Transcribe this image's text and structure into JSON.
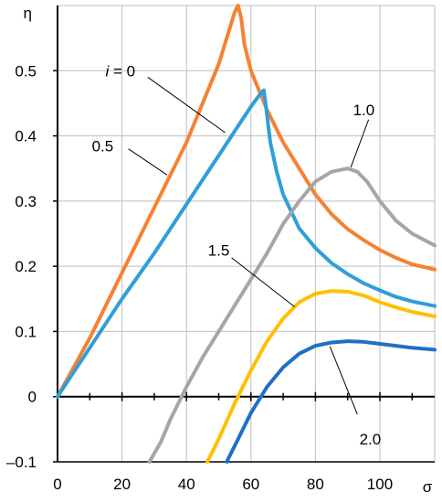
{
  "chart_data": {
    "type": "line",
    "title": "",
    "xlabel": "σ",
    "ylabel": "η",
    "xlim": [
      0,
      117
    ],
    "ylim": [
      -0.1,
      0.6
    ],
    "xticks": [
      0,
      20,
      40,
      60,
      80,
      100
    ],
    "yticks": [
      -0.1,
      0,
      0.1,
      0.2,
      0.3,
      0.4,
      0.5
    ],
    "xtick_labels": [
      "0",
      "20",
      "40",
      "60",
      "80",
      "100"
    ],
    "ytick_labels": [
      "–0.1",
      "0",
      "0.1",
      "0.2",
      "0.3",
      "0.4",
      "0.5"
    ],
    "grid": true,
    "series": [
      {
        "name": "i = 0",
        "color": "#f58233",
        "points": [
          [
            0,
            0
          ],
          [
            10,
            0.09
          ],
          [
            20,
            0.19
          ],
          [
            30,
            0.29
          ],
          [
            40,
            0.39
          ],
          [
            50,
            0.51
          ],
          [
            55,
            0.59
          ],
          [
            56,
            0.6
          ],
          [
            57,
            0.58
          ],
          [
            58,
            0.54
          ],
          [
            60,
            0.5
          ],
          [
            65,
            0.44
          ],
          [
            70,
            0.39
          ],
          [
            75,
            0.35
          ],
          [
            80,
            0.31
          ],
          [
            85,
            0.28
          ],
          [
            90,
            0.257
          ],
          [
            95,
            0.24
          ],
          [
            100,
            0.225
          ],
          [
            105,
            0.213
          ],
          [
            110,
            0.203
          ],
          [
            117,
            0.195
          ]
        ]
      },
      {
        "name": "0.5",
        "color": "#2f9fd8",
        "points": [
          [
            0,
            0
          ],
          [
            10,
            0.075
          ],
          [
            20,
            0.15
          ],
          [
            30,
            0.22
          ],
          [
            40,
            0.295
          ],
          [
            50,
            0.37
          ],
          [
            60,
            0.445
          ],
          [
            63,
            0.465
          ],
          [
            64,
            0.47
          ],
          [
            64.8,
            0.44
          ],
          [
            66,
            0.39
          ],
          [
            68,
            0.345
          ],
          [
            70,
            0.31
          ],
          [
            75,
            0.258
          ],
          [
            80,
            0.228
          ],
          [
            85,
            0.205
          ],
          [
            90,
            0.188
          ],
          [
            95,
            0.174
          ],
          [
            100,
            0.163
          ],
          [
            105,
            0.153
          ],
          [
            110,
            0.146
          ],
          [
            117,
            0.139
          ]
        ]
      },
      {
        "name": "1.0",
        "color": "#a6a6a6",
        "points": [
          [
            28.5,
            -0.1
          ],
          [
            32,
            -0.07
          ],
          [
            35,
            -0.035
          ],
          [
            40,
            0.015
          ],
          [
            45,
            0.06
          ],
          [
            50,
            0.1
          ],
          [
            55,
            0.14
          ],
          [
            60,
            0.18
          ],
          [
            65,
            0.22
          ],
          [
            70,
            0.265
          ],
          [
            75,
            0.3
          ],
          [
            80,
            0.33
          ],
          [
            85,
            0.345
          ],
          [
            90,
            0.35
          ],
          [
            93,
            0.345
          ],
          [
            96,
            0.33
          ],
          [
            100,
            0.3
          ],
          [
            105,
            0.27
          ],
          [
            110,
            0.25
          ],
          [
            117,
            0.232
          ]
        ]
      },
      {
        "name": "1.5",
        "color": "#ffc000",
        "points": [
          [
            46.5,
            -0.1
          ],
          [
            50,
            -0.065
          ],
          [
            55,
            -0.01
          ],
          [
            60,
            0.04
          ],
          [
            65,
            0.085
          ],
          [
            70,
            0.12
          ],
          [
            75,
            0.145
          ],
          [
            80,
            0.158
          ],
          [
            85,
            0.162
          ],
          [
            90,
            0.161
          ],
          [
            95,
            0.155
          ],
          [
            100,
            0.145
          ],
          [
            105,
            0.137
          ],
          [
            110,
            0.13
          ],
          [
            117,
            0.123
          ]
        ]
      },
      {
        "name": "2.0",
        "color": "#1f6fc5",
        "points": [
          [
            52.5,
            -0.1
          ],
          [
            56,
            -0.065
          ],
          [
            60,
            -0.025
          ],
          [
            65,
            0.015
          ],
          [
            70,
            0.045
          ],
          [
            75,
            0.066
          ],
          [
            80,
            0.078
          ],
          [
            85,
            0.083
          ],
          [
            90,
            0.085
          ],
          [
            95,
            0.084
          ],
          [
            100,
            0.081
          ],
          [
            105,
            0.078
          ],
          [
            110,
            0.075
          ],
          [
            117,
            0.072
          ]
        ]
      }
    ],
    "annotations": [
      {
        "name": "i0",
        "prefix": "i",
        "suffix": " = 0",
        "text_at": [
          19.5,
          0.5
        ],
        "line_from": [
          28,
          0.49
        ],
        "line_to": [
          52,
          0.405
        ]
      },
      {
        "name": "0.5",
        "text": "0.5",
        "text_at": [
          14,
          0.385
        ],
        "line_from": [
          22,
          0.38
        ],
        "line_to": [
          34,
          0.34
        ]
      },
      {
        "name": "1.0",
        "text": "1.0",
        "text_at": [
          95,
          0.44
        ],
        "line_from": [
          96.5,
          0.425
        ],
        "line_to": [
          91,
          0.352
        ]
      },
      {
        "name": "1.5",
        "text": "1.5",
        "text_at": [
          50,
          0.225
        ],
        "line_from": [
          54,
          0.213
        ],
        "line_to": [
          73.5,
          0.138
        ]
      },
      {
        "name": "2.0",
        "text": "2.0",
        "text_at": [
          97,
          -0.065
        ],
        "line_from": [
          93,
          -0.027
        ],
        "line_to": [
          84.5,
          0.077
        ]
      }
    ]
  }
}
